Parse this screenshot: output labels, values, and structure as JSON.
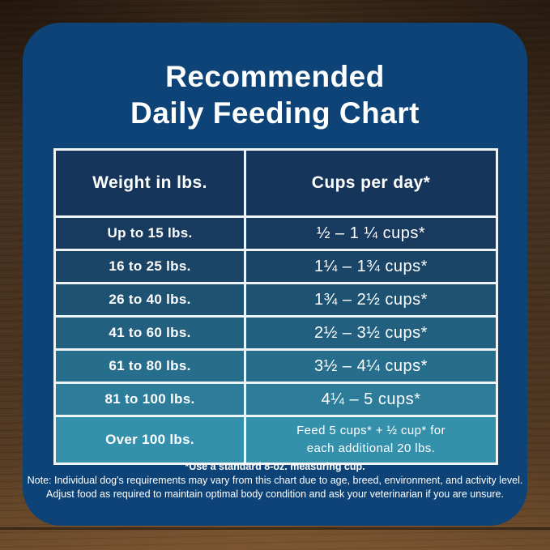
{
  "title": {
    "line1": "Recommended",
    "line2": "Daily Feeding Chart"
  },
  "chart_data": {
    "type": "table",
    "title": "Recommended Daily Feeding Chart",
    "columns": [
      "Weight in lbs.",
      "Cups per day*"
    ],
    "rows": [
      [
        "Up to 15 lbs.",
        "½ – 1 ¼ cups*"
      ],
      [
        "16 to 25 lbs.",
        "1¼ – 1¾  cups*"
      ],
      [
        "26 to 40 lbs.",
        "1¾ – 2½ cups*"
      ],
      [
        "41 to 60 lbs.",
        "2½ – 3½ cups*"
      ],
      [
        "61 to 80 lbs.",
        "3½ – 4¼ cups*"
      ],
      [
        "81 to 100 lbs.",
        "4¼ – 5 cups*"
      ],
      [
        "Over 100 lbs.",
        "Feed 5 cups* + ½ cup* for each additional 20 lbs."
      ]
    ]
  },
  "table": {
    "header": {
      "weight": "Weight in lbs.",
      "cups": "Cups per day*"
    },
    "rows": [
      {
        "weight": "Up to 15 lbs.",
        "cups": "½ – 1 ¼ cups*"
      },
      {
        "weight": "16 to 25 lbs.",
        "cups": "1¼ – 1¾  cups*"
      },
      {
        "weight": "26 to 40 lbs.",
        "cups": "1¾ – 2½ cups*"
      },
      {
        "weight": "41 to 60 lbs.",
        "cups": "2½ – 3½ cups*"
      },
      {
        "weight": "61 to 80 lbs.",
        "cups": "3½ – 4¼ cups*"
      },
      {
        "weight": "81 to 100 lbs.",
        "cups": "4¼ – 5 cups*"
      }
    ],
    "last_row": {
      "weight": "Over 100 lbs.",
      "cups_line1": "Feed 5 cups*  + ½ cup* for",
      "cups_line2": "each  additional 20 lbs."
    }
  },
  "footnotes": {
    "measuring_cup": "*Use a standard 8-oz. measuring cup.",
    "note_line1": "Note: Individual dog's requirements may vary from this chart due to age, breed, environment, and activity level.",
    "note_line2": "Adjust food as required to maintain optimal body condition and ask your veterinarian if you are unsure."
  },
  "colors": {
    "card_bg": "#0d4377",
    "table_line": "#eef3f6",
    "header_bg": "#15355b",
    "text": "#ffffff",
    "row_colors": [
      "#173a5e",
      "#1a4566",
      "#1e5272",
      "#236080",
      "#276e8d",
      "#2c7c9a",
      "#3590ac"
    ],
    "wood_dark": "#3c2a19",
    "wood_light": "#644628"
  }
}
